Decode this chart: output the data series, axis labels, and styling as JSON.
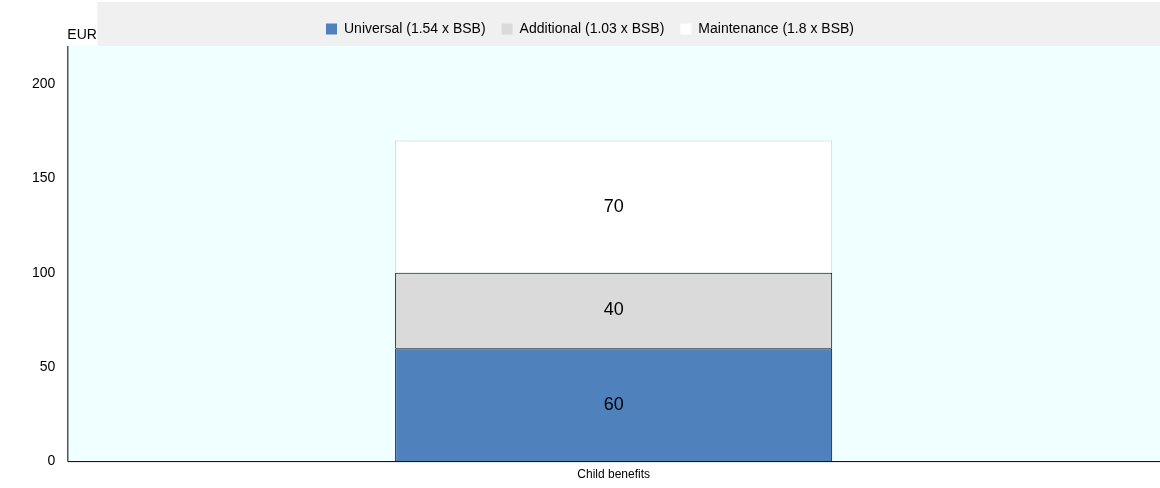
{
  "chart_data": {
    "type": "bar",
    "stacked": true,
    "ylabel": "EUR",
    "categories": [
      "Child benefits"
    ],
    "series": [
      {
        "name": "Universal (1.54 x BSB)",
        "color": "#4f81bd",
        "values": [
          60
        ]
      },
      {
        "name": "Additional (1.03 x BSB)",
        "color": "#dadada",
        "values": [
          40
        ]
      },
      {
        "name": "Maintenance (1.8 x BSB)",
        "color": "#ffffff",
        "values": [
          70
        ]
      }
    ],
    "ylim": [
      0,
      220
    ],
    "yticks": [
      0,
      50,
      100,
      150,
      200
    ],
    "grid": false,
    "legend": "top",
    "data_labels": true
  }
}
